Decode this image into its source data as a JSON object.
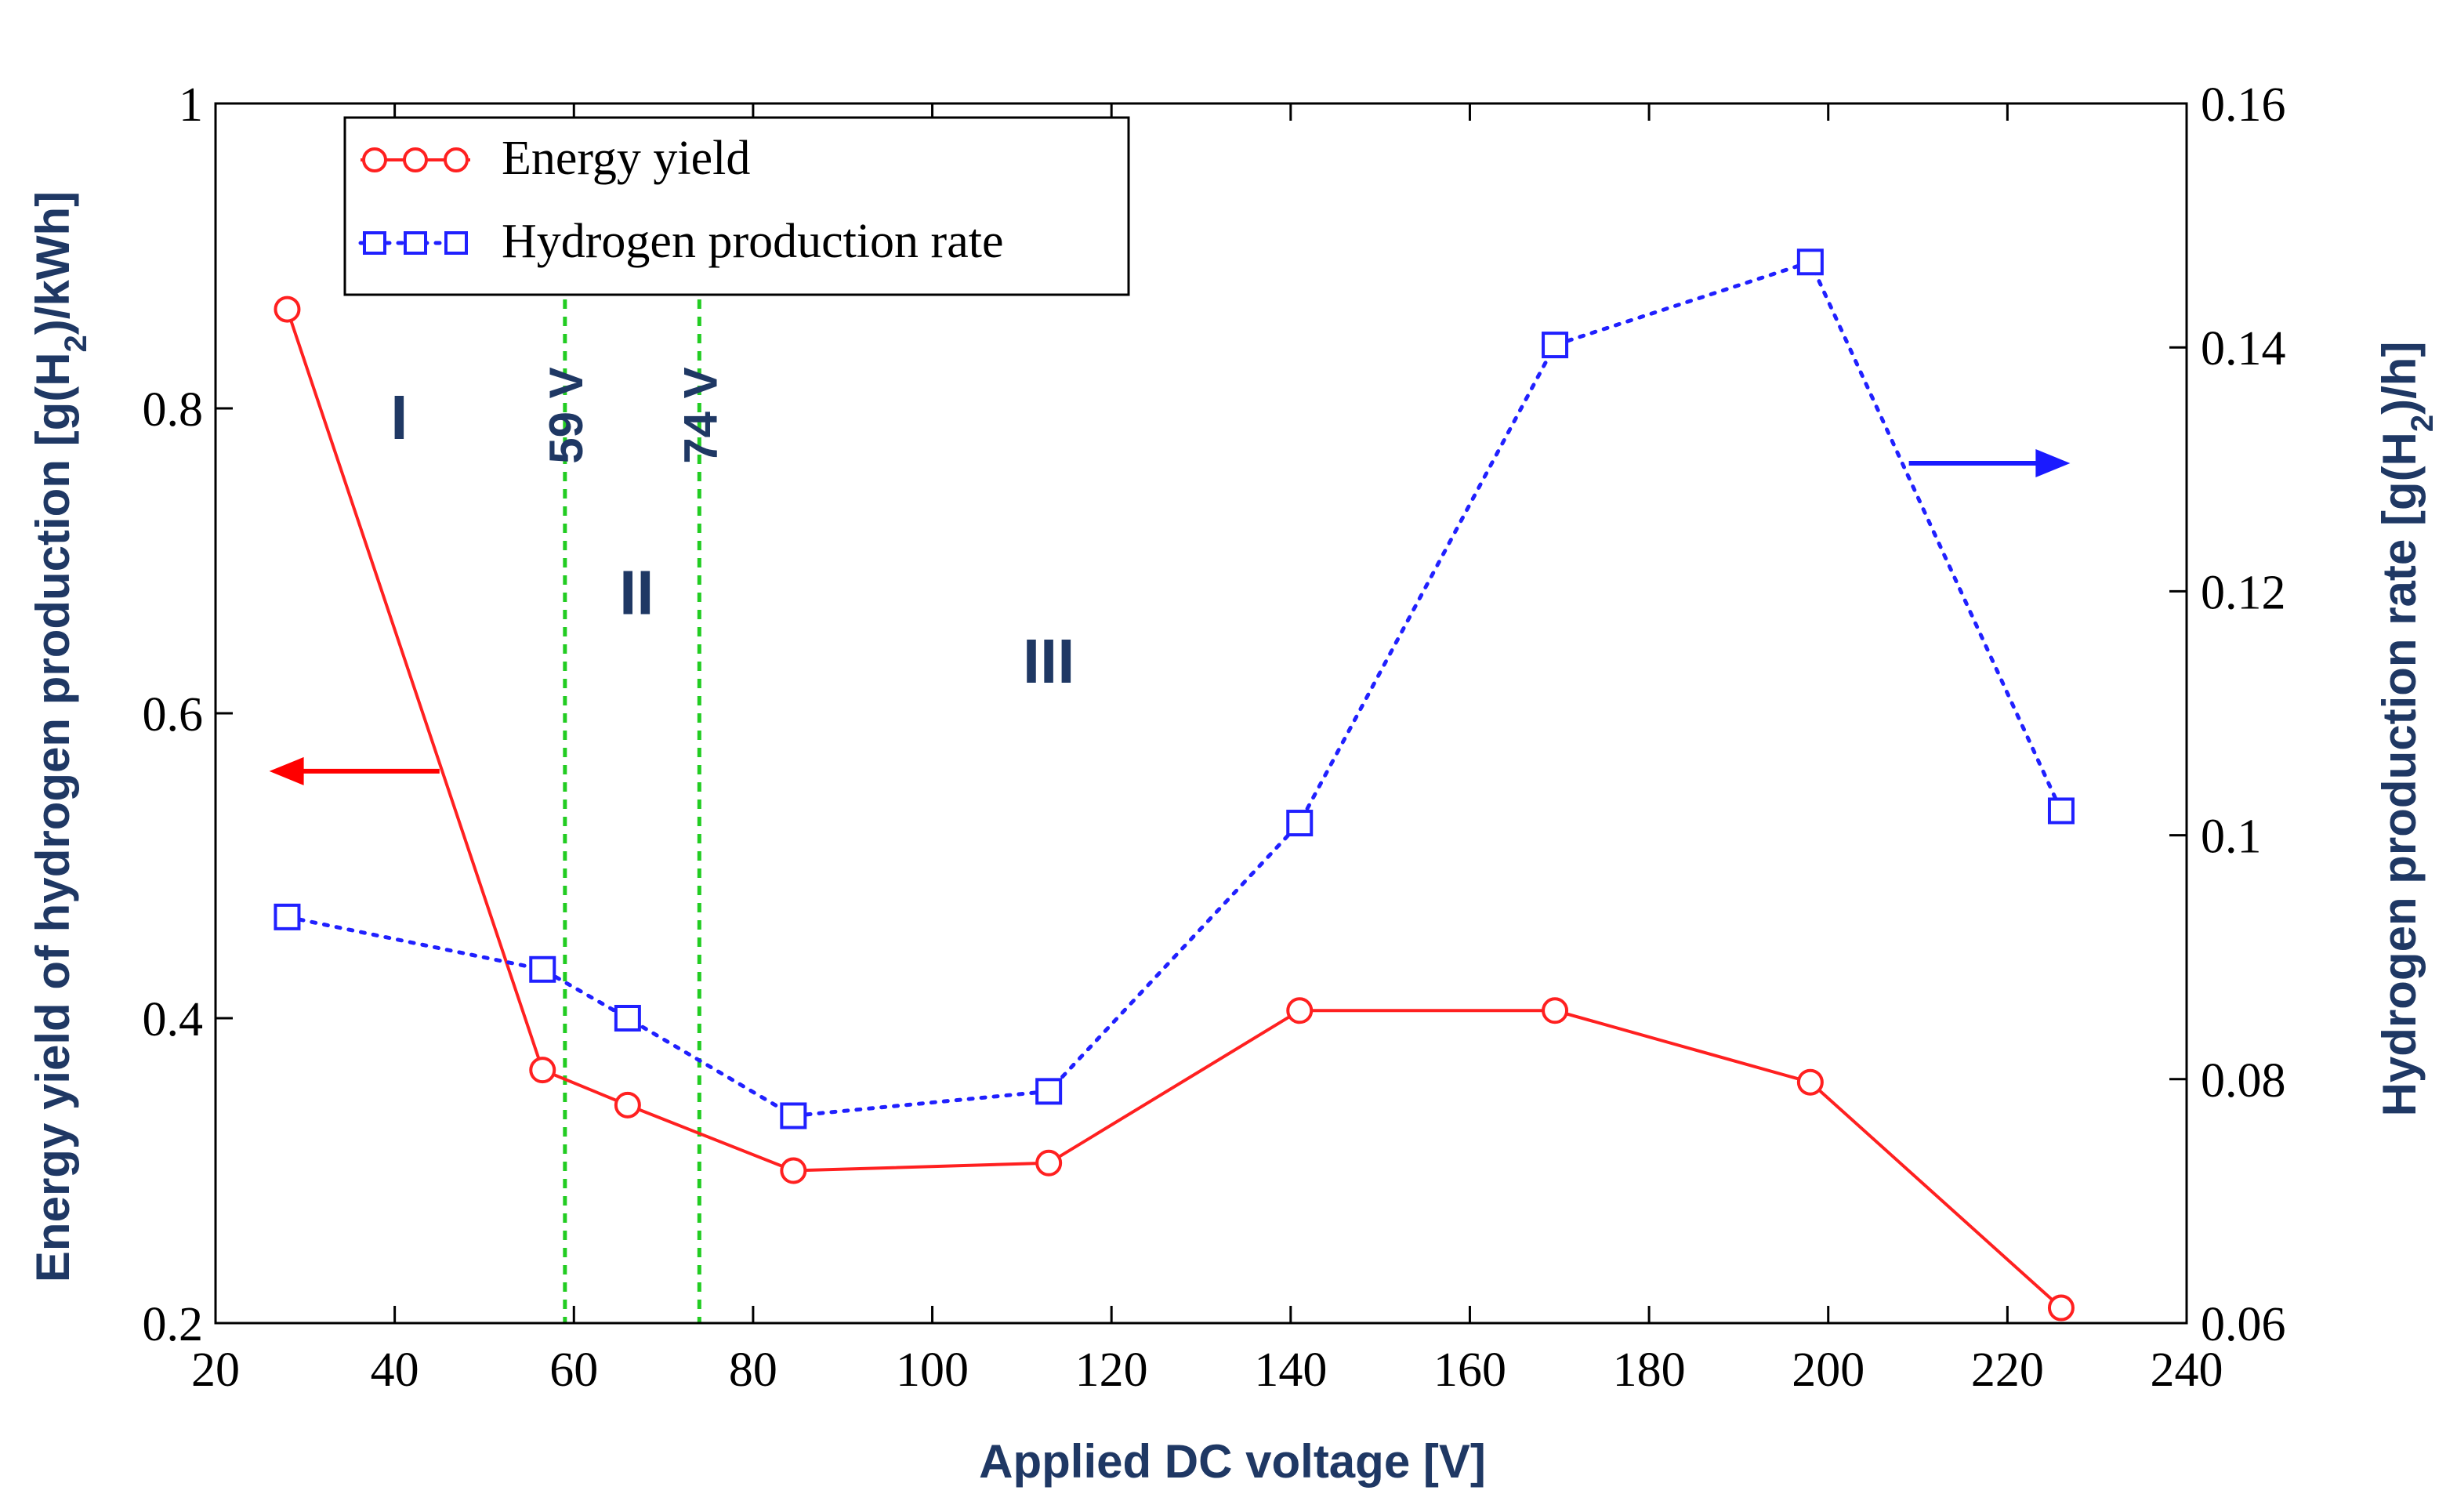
{
  "chart_data": {
    "type": "line",
    "xlabel": "Applied DC voltage [V]",
    "ylabel_left": {
      "pre": "Energy yield of hydrogen production [g(H",
      "sub": "2",
      "post": ")/kWh]"
    },
    "ylabel_right": {
      "pre": "Hydrogen production rate [g(H",
      "sub": "2",
      "post": ")/h]"
    },
    "xlim": [
      20,
      240
    ],
    "ylim_left": [
      0.2,
      1.0
    ],
    "ylim_right": [
      0.06,
      0.16
    ],
    "x_ticks": [
      20,
      40,
      60,
      80,
      100,
      120,
      140,
      160,
      180,
      200,
      220,
      240
    ],
    "x_tick_labels": [
      "20",
      "40",
      "60",
      "80",
      "100",
      "120",
      "140",
      "160",
      "180",
      "200",
      "220",
      "240"
    ],
    "y_left_ticks": [
      0.2,
      0.4,
      0.6,
      0.8,
      1.0
    ],
    "y_left_tick_labels": [
      "0.2",
      "0.4",
      "0.6",
      "0.8",
      "1"
    ],
    "y_right_ticks": [
      0.06,
      0.08,
      0.1,
      0.12,
      0.14,
      0.16
    ],
    "y_right_tick_labels": [
      "0.06",
      "0.08",
      "0.1",
      "0.12",
      "0.14",
      "0.16"
    ],
    "series": [
      {
        "name": "Energy yield",
        "axis": "left",
        "color": "#ff2020",
        "marker": "circle",
        "linestyle": "solid",
        "x": [
          28,
          56.5,
          66,
          84.5,
          113,
          141,
          169.5,
          198,
          226
        ],
        "values": [
          0.865,
          0.366,
          0.343,
          0.3,
          0.305,
          0.405,
          0.405,
          0.358,
          0.21
        ]
      },
      {
        "name": "Hydrogen production rate",
        "axis": "right",
        "color": "#2020ff",
        "marker": "square",
        "linestyle": "dotted",
        "x": [
          28,
          56.5,
          66,
          84.5,
          113,
          141,
          169.5,
          198,
          226
        ],
        "values": [
          0.0933,
          0.089,
          0.085,
          0.077,
          0.079,
          0.101,
          0.1402,
          0.147,
          0.102
        ]
      }
    ],
    "vertical_markers": [
      {
        "x": 59,
        "label": "59 V",
        "color": "#22cc22"
      },
      {
        "x": 74,
        "label": "74 V",
        "color": "#22cc22"
      }
    ],
    "regions": [
      {
        "label": "I",
        "x": 40.5,
        "y": 0.78
      },
      {
        "label": "II",
        "x": 67,
        "y": 0.665
      },
      {
        "label": "III",
        "x": 113,
        "y": 0.62
      }
    ],
    "arrows": [
      {
        "name": "left-axis-arrow",
        "color": "#ff0000",
        "from_x": 45,
        "to_x": 26,
        "y": 0.562
      },
      {
        "name": "right-axis-arrow",
        "color": "#1a1aff",
        "from_x": 209,
        "to_x": 227,
        "y": 0.764
      }
    ],
    "legend": {
      "location": "top-left"
    }
  }
}
